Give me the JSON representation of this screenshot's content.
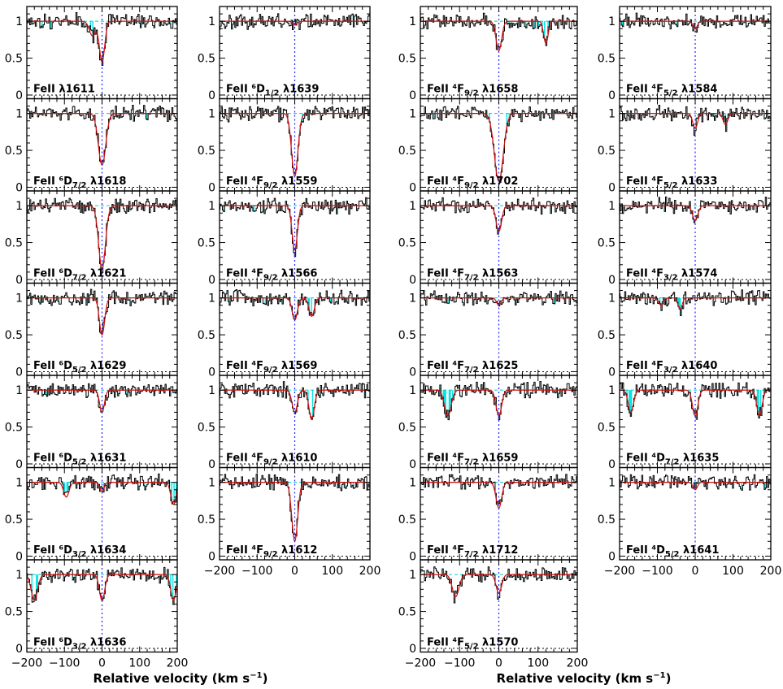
{
  "chart_data": {
    "type": "line",
    "xlabel": "Relative velocity (km s",
    "xlabel_sup": "−1",
    "xlabel_end": ")",
    "xlim": [
      -200,
      200
    ],
    "ylim": [
      -0.05,
      1.2
    ],
    "x_ticks": [
      -200,
      -100,
      0,
      100,
      200
    ],
    "x_tick_labels": [
      "−200",
      "−100",
      "0",
      "100",
      "200"
    ],
    "y_ticks": [
      0,
      0.5,
      1
    ],
    "y_tick_labels": [
      "0",
      "0.5",
      "1"
    ],
    "colors": {
      "data": "#000000",
      "model": "#d01010",
      "contamination": "#00e5e5",
      "zero_velocity": "#2222ff",
      "continuum": "#00cccc"
    },
    "columns": [
      {
        "name": "col1",
        "panels": [
          {
            "ion": "FeII",
            "state": "",
            "sub": "",
            "wave": "λ1611",
            "comps": [
              [
                -25,
                0.2,
                12
              ],
              [
                0,
                0.55,
                10
              ]
            ]
          },
          {
            "ion": "FeII",
            "state": "⁶D",
            "sub": "7/2",
            "wave": "λ1618",
            "comps": [
              [
                0,
                0.7,
                14
              ]
            ]
          },
          {
            "ion": "FeII",
            "state": "⁶D",
            "sub": "7/2",
            "wave": "λ1621",
            "comps": [
              [
                0,
                0.85,
                13
              ]
            ]
          },
          {
            "ion": "FeII",
            "state": "⁶D",
            "sub": "5/2",
            "wave": "λ1629",
            "comps": [
              [
                0,
                0.5,
                10
              ]
            ]
          },
          {
            "ion": "FeII",
            "state": "⁶D",
            "sub": "5/2",
            "wave": "λ1631",
            "comps": [
              [
                0,
                0.3,
                9
              ]
            ]
          },
          {
            "ion": "FeII",
            "state": "⁶D",
            "sub": "3/2",
            "wave": "λ1634",
            "comps": [
              [
                -95,
                0.2,
                10
              ],
              [
                0,
                0.12,
                8
              ],
              [
                190,
                0.3,
                10
              ]
            ]
          },
          {
            "ion": "FeII",
            "state": "⁶D",
            "sub": "3/2",
            "wave": "λ1636",
            "comps": [
              [
                -180,
                0.35,
                12
              ],
              [
                0,
                0.35,
                10
              ],
              [
                190,
                0.35,
                10
              ]
            ]
          }
        ]
      },
      {
        "name": "col2",
        "panels": [
          {
            "ion": "FeII",
            "state": "⁶D",
            "sub": "1/2",
            "wave": "λ1639",
            "comps": [
              [
                0,
                0.05,
                8
              ]
            ]
          },
          {
            "ion": "FeII",
            "state": "⁴F",
            "sub": "9/2",
            "wave": "λ1559",
            "comps": [
              [
                0,
                0.85,
                12
              ]
            ]
          },
          {
            "ion": "FeII",
            "state": "⁴F",
            "sub": "9/2",
            "wave": "λ1566",
            "comps": [
              [
                0,
                0.6,
                10
              ]
            ]
          },
          {
            "ion": "FeII",
            "state": "⁴F",
            "sub": "9/2",
            "wave": "λ1569",
            "comps": [
              [
                0,
                0.3,
                10
              ],
              [
                45,
                0.25,
                10
              ]
            ]
          },
          {
            "ion": "FeII",
            "state": "⁴F",
            "sub": "9/2",
            "wave": "λ1610",
            "comps": [
              [
                0,
                0.3,
                10
              ],
              [
                45,
                0.4,
                10
              ]
            ]
          },
          {
            "ion": "FeII",
            "state": "⁴F",
            "sub": "9/2",
            "wave": "λ1612",
            "comps": [
              [
                0,
                0.8,
                11
              ]
            ]
          }
        ]
      },
      {
        "name": "col3",
        "panels": [
          {
            "ion": "FeII",
            "state": "⁴F",
            "sub": "9/2",
            "wave": "λ1658",
            "comps": [
              [
                0,
                0.4,
                10
              ],
              [
                120,
                0.3,
                8
              ]
            ]
          },
          {
            "ion": "FeII",
            "state": "⁴F",
            "sub": "9/2",
            "wave": "λ1702",
            "comps": [
              [
                0,
                0.92,
                16
              ]
            ]
          },
          {
            "ion": "FeII",
            "state": "⁴F",
            "sub": "7/2",
            "wave": "λ1563",
            "comps": [
              [
                0,
                0.35,
                10
              ]
            ]
          },
          {
            "ion": "FeII",
            "state": "⁴F",
            "sub": "7/2",
            "wave": "λ1625",
            "comps": [
              [
                0,
                0.1,
                8
              ]
            ]
          },
          {
            "ion": "FeII",
            "state": "⁴F",
            "sub": "7/2",
            "wave": "λ1659",
            "comps": [
              [
                -130,
                0.35,
                12
              ],
              [
                0,
                0.35,
                10
              ]
            ]
          },
          {
            "ion": "FeII",
            "state": "⁴F",
            "sub": "7/2",
            "wave": "λ1712",
            "comps": [
              [
                0,
                0.35,
                10
              ]
            ]
          },
          {
            "ion": "FeII",
            "state": "⁴F",
            "sub": "5/2",
            "wave": "λ1570",
            "comps": [
              [
                -110,
                0.3,
                12
              ],
              [
                0,
                0.25,
                10
              ]
            ]
          }
        ]
      },
      {
        "name": "col4",
        "panels": [
          {
            "ion": "FeII",
            "state": "⁴F",
            "sub": "5/2",
            "wave": "λ1584",
            "comps": [
              [
                0,
                0.1,
                8
              ]
            ]
          },
          {
            "ion": "FeII",
            "state": "⁴F",
            "sub": "5/2",
            "wave": "λ1633",
            "comps": [
              [
                0,
                0.2,
                9
              ],
              [
                80,
                0.15,
                9
              ]
            ]
          },
          {
            "ion": "FeII",
            "state": "⁴F",
            "sub": "3/2",
            "wave": "λ1574",
            "comps": [
              [
                0,
                0.2,
                10
              ]
            ]
          },
          {
            "ion": "FeII",
            "state": "⁴F",
            "sub": "3/2",
            "wave": "λ1640",
            "comps": [
              [
                -90,
                0.1,
                10
              ],
              [
                -40,
                0.15,
                8
              ]
            ]
          },
          {
            "ion": "FeII",
            "state": "⁴D",
            "sub": "7/2",
            "wave": "λ1635",
            "comps": [
              [
                -170,
                0.3,
                10
              ],
              [
                0,
                0.35,
                10
              ],
              [
                170,
                0.35,
                10
              ]
            ]
          },
          {
            "ion": "FeII",
            "state": "⁴D",
            "sub": "5/2",
            "wave": "λ1641",
            "comps": [
              [
                0,
                0.1,
                8
              ]
            ]
          }
        ]
      }
    ]
  }
}
